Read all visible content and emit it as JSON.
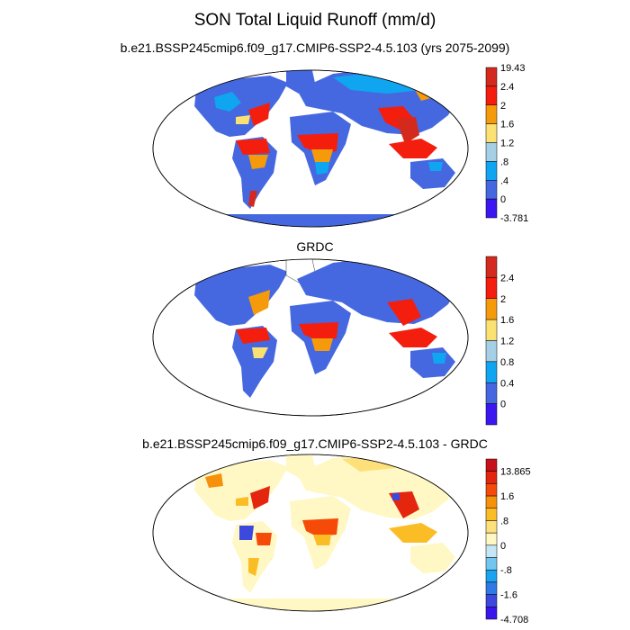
{
  "page": {
    "title": "SON Total Liquid Runoff (mm/d)"
  },
  "panels": [
    {
      "id": "model",
      "title": "b.e21.BSSP245cmip6.f09_g17.CMIP6-SSP2-4.5.103 (yrs 2075-2099)",
      "colorbar": {
        "levels": [
          "19.43",
          "2.4",
          "2",
          "1.6",
          "1.2",
          ".8",
          ".4",
          "0",
          "-3.781"
        ],
        "colors": [
          "#d42a1e",
          "#f41e0e",
          "#f59a0a",
          "#fbe072",
          "#a4cfe5",
          "#10a5f0",
          "#4568e0",
          "#3b16f0"
        ]
      }
    },
    {
      "id": "obs",
      "title": "GRDC",
      "colorbar": {
        "levels": [
          "2.4",
          "2",
          "1.6",
          "1.2",
          "0.8",
          "0.4",
          "0"
        ],
        "colors": [
          "#d42a1e",
          "#f41e0e",
          "#f59a0a",
          "#fbe072",
          "#a4cfe5",
          "#10a5f0",
          "#4568e0",
          "#3b16f0"
        ]
      }
    },
    {
      "id": "diff",
      "title": "b.e21.BSSP245cmip6.f09_g17.CMIP6-SSP2-4.5.103 - GRDC",
      "colorbar": {
        "levels": [
          "13.865",
          "",
          "1.6",
          "",
          ".8",
          "",
          "0",
          "",
          "-.8",
          "",
          "-1.6",
          "",
          "-4.708"
        ],
        "colors": [
          "#c6111a",
          "#e4260e",
          "#f64b08",
          "#f7900b",
          "#fbbd25",
          "#fde07a",
          "#fff8c4",
          "#c4e6f5",
          "#72c6ef",
          "#1aa4ef",
          "#2f7ae5",
          "#3c48de",
          "#3a15ec"
        ]
      }
    }
  ]
}
